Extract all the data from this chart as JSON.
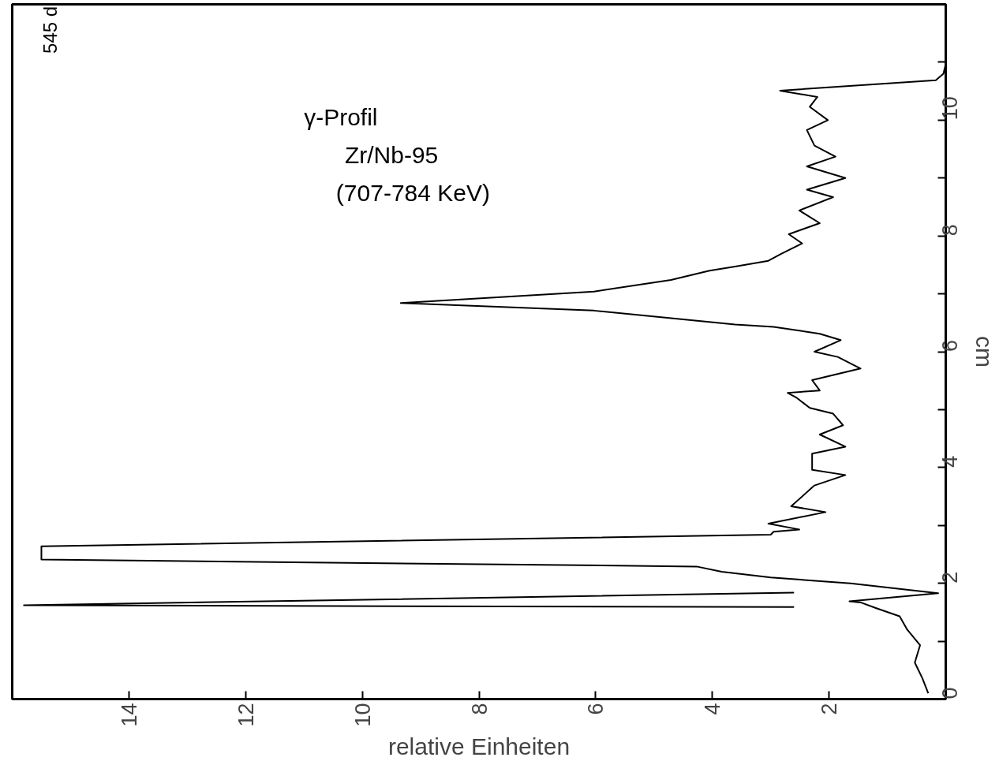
{
  "chart_data": {
    "type": "line",
    "orientation": "horizontal",
    "title": "γ-Profil",
    "subtitle": "Zr/Nb-95",
    "annotations": [
      "(707-784 KeV)",
      "545 d"
    ],
    "xlabel": "relative Einheiten",
    "ylabel": "cm",
    "xlim": [
      16,
      0
    ],
    "xticks": [
      2,
      4,
      6,
      8,
      10,
      12,
      14
    ],
    "ylim": [
      0,
      12
    ],
    "yticks": [
      0,
      {
        "value": 1,
        "label": null
      },
      2,
      {
        "value": 3,
        "label": null
      },
      4,
      {
        "value": 5,
        "label": null
      },
      6,
      {
        "value": 7,
        "label": null
      },
      8,
      {
        "value": 9,
        "label": null
      },
      10,
      {
        "value": 11,
        "label": null
      }
    ],
    "line_style": "solid",
    "series": [
      {
        "color": "#000000",
        "x": [
          0.1,
          0.36,
          0.63,
          0.93,
          1.2,
          1.43,
          1.57,
          1.67,
          1.69,
          1.83,
          2.0,
          2.1,
          2.2,
          2.29,
          2.41,
          2.64,
          2.84,
          2.89,
          2.93,
          3.03,
          3.23,
          3.33,
          3.69,
          3.87,
          3.96,
          4.24,
          4.36,
          4.57,
          4.73,
          4.93,
          5.03,
          5.2,
          5.29,
          5.33,
          5.51,
          5.71,
          5.91,
          6.0,
          6.2,
          6.31,
          6.43,
          6.47,
          6.71,
          6.84,
          7.04,
          7.24,
          7.4,
          7.47,
          7.57,
          7.69,
          7.87,
          8.03,
          8.22,
          8.44,
          8.67,
          8.8,
          9.0,
          9.2,
          9.37,
          9.56,
          9.83,
          10.0,
          10.23,
          10.4,
          10.51,
          10.69,
          10.8,
          10.97
        ],
        "values": [
          0.3,
          0.4,
          0.53,
          0.44,
          0.66,
          0.79,
          1.19,
          1.46,
          1.65,
          0.13,
          1.63,
          3.0,
          3.84,
          4.27,
          15.5,
          15.5,
          3.0,
          2.95,
          2.51,
          3.04,
          2.06,
          2.65,
          2.25,
          1.72,
          2.29,
          2.29,
          1.72,
          2.16,
          1.76,
          1.93,
          2.33,
          2.55,
          2.71,
          2.16,
          2.29,
          1.46,
          1.85,
          2.25,
          1.8,
          2.16,
          2.95,
          3.61,
          6.03,
          9.34,
          6.03,
          4.71,
          4.05,
          3.61,
          3.04,
          2.82,
          2.46,
          2.69,
          2.16,
          2.51,
          1.93,
          2.38,
          1.72,
          2.38,
          1.89,
          2.25,
          2.38,
          2.02,
          2.33,
          2.2,
          2.84,
          0.17,
          0.04,
          0.0
        ]
      },
      {
        "color": "#000000",
        "x": [
          1.59,
          1.62,
          1.84
        ],
        "values": [
          2.6,
          15.8,
          2.6
        ]
      }
    ]
  }
}
